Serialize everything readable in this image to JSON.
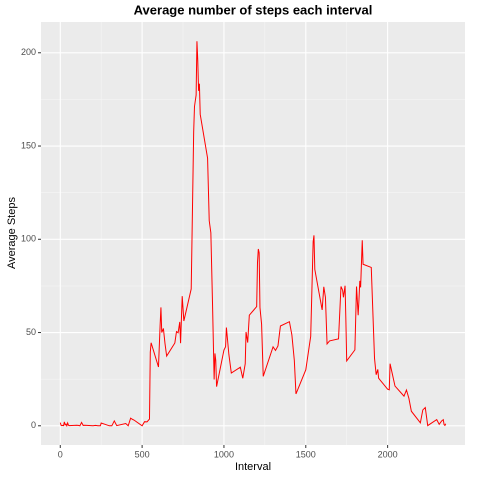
{
  "chart_data": {
    "type": "line",
    "title": "Average number of steps each interval",
    "x_label": "Interval",
    "y_label": "Average Steps",
    "x": [
      0,
      5,
      10,
      15,
      20,
      25,
      30,
      35,
      40,
      45,
      50,
      55,
      100,
      110,
      120,
      130,
      140,
      150,
      200,
      215,
      230,
      245,
      250,
      300,
      315,
      330,
      345,
      400,
      415,
      430,
      440,
      450,
      500,
      515,
      530,
      545,
      550,
      555,
      600,
      610,
      615,
      620,
      630,
      640,
      650,
      700,
      710,
      720,
      730,
      735,
      745,
      755,
      800,
      810,
      815,
      820,
      830,
      835,
      840,
      845,
      850,
      855,
      900,
      910,
      920,
      930,
      940,
      945,
      950,
      955,
      1000,
      1010,
      1015,
      1030,
      1045,
      1100,
      1115,
      1130,
      1135,
      1145,
      1155,
      1200,
      1205,
      1210,
      1215,
      1220,
      1230,
      1240,
      1300,
      1315,
      1330,
      1345,
      1400,
      1415,
      1430,
      1440,
      1500,
      1515,
      1530,
      1545,
      1550,
      1555,
      1600,
      1610,
      1620,
      1630,
      1645,
      1700,
      1715,
      1725,
      1730,
      1740,
      1745,
      1750,
      1800,
      1810,
      1820,
      1825,
      1830,
      1835,
      1845,
      1850,
      1900,
      1920,
      1930,
      1940,
      1945,
      2000,
      2010,
      2015,
      2030,
      2045,
      2100,
      2115,
      2130,
      2145,
      2200,
      2215,
      2230,
      2245,
      2300,
      2315,
      2330,
      2340,
      2345,
      2350,
      2355
    ],
    "series": [
      {
        "name": "Average Steps",
        "color": "#ff0000",
        "values": [
          1.7,
          0.3,
          0.1,
          0.2,
          0.1,
          2.1,
          0.5,
          0.9,
          0,
          1.5,
          0.3,
          0.1,
          0.3,
          0.2,
          0,
          1.8,
          0.2,
          0.3,
          0,
          0.2,
          0,
          0,
          1.5,
          0,
          0,
          2.6,
          0.1,
          1.2,
          0,
          4.1,
          3.5,
          3.1,
          0,
          2.2,
          2.1,
          3.6,
          39.5,
          44.5,
          31.5,
          53.8,
          63.5,
          50,
          52.2,
          44,
          37.4,
          44.4,
          50.5,
          49.9,
          55.7,
          44.3,
          69.5,
          56.2,
          73.4,
          129.4,
          157.5,
          171.2,
          177.3,
          206.2,
          195.9,
          179.6,
          183.4,
          167,
          143.5,
          110,
          103.5,
          66.2,
          24.8,
          38.8,
          35,
          21,
          40.6,
          42.4,
          52.7,
          38.3,
          28.3,
          31.4,
          25.5,
          33.3,
          50.3,
          44.6,
          59.3,
          63.9,
          87.6,
          94.8,
          92.8,
          63.4,
          54.5,
          26.5,
          42.3,
          40.4,
          42.8,
          53.5,
          55.8,
          48.7,
          35,
          17.1,
          30,
          39,
          48,
          98.7,
          102.1,
          83.9,
          62.1,
          74.5,
          68.9,
          43.9,
          45.5,
          46.6,
          74.7,
          72.7,
          68.9,
          75.1,
          56.5,
          34.8,
          40.7,
          74.7,
          59.3,
          67.8,
          77.7,
          74.2,
          99.5,
          86.6,
          84.9,
          36.1,
          27.4,
          30.2,
          25.5,
          19.6,
          19.3,
          33.3,
          27.3,
          21.3,
          15.9,
          19.2,
          14.7,
          7.8,
          1.6,
          8.5,
          9.8,
          0.1,
          3.3,
          0.8,
          2.6,
          3.3,
          0.6,
          0.2,
          1.1
        ]
      }
    ],
    "xlim": [
      -117.75,
      2472.75
    ],
    "ylim": [
      -10.3,
      216.5
    ],
    "xticks": [
      0,
      500,
      1000,
      1500,
      2000
    ],
    "yticks": [
      0,
      50,
      100,
      150,
      200
    ],
    "grid": true
  }
}
